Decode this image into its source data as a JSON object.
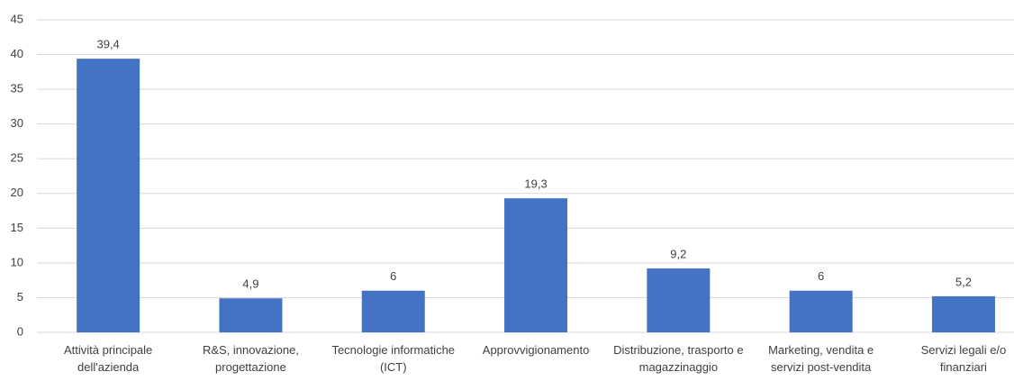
{
  "chart_data": {
    "type": "bar",
    "categories": [
      "Attività principale dell'azienda",
      "R&S, innovazione, progettazione",
      "Tecnologie informatiche (ICT)",
      "Approvvigionamento",
      "Distribuzione, trasporto e magazzinaggio",
      "Marketing, vendita e servizi post-vendita",
      "Servizi legali e/o finanziari"
    ],
    "values": [
      39.4,
      4.9,
      6,
      19.3,
      9.2,
      6,
      5.2
    ],
    "value_labels": [
      "39,4",
      "4,9",
      "6",
      "19,3",
      "9,2",
      "6",
      "5,2"
    ],
    "color": "#4472c4",
    "ylim": [
      0,
      45
    ],
    "yticks": [
      0,
      5,
      10,
      15,
      20,
      25,
      30,
      35,
      40,
      45
    ],
    "grid": true
  }
}
